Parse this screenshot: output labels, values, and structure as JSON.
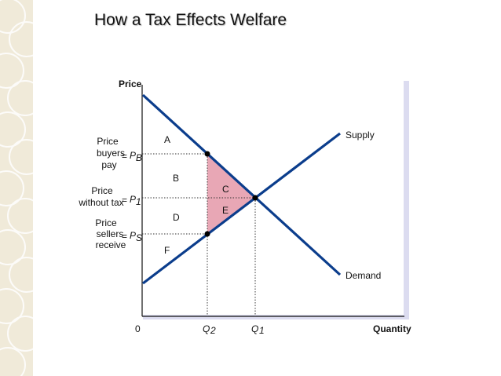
{
  "slide": {
    "title": "How a Tax Effects Welfare"
  },
  "diagram": {
    "axes": {
      "y_label": "Price",
      "x_label": "Quantity",
      "origin": "0"
    },
    "curves": {
      "supply": "Supply",
      "demand": "Demand"
    },
    "price_levels": {
      "buyers": {
        "line1": "Price",
        "line2": "buyers",
        "line3": "pay",
        "symbol": "P",
        "subscript": "B"
      },
      "no_tax": {
        "line1": "Price",
        "line2": "without tax",
        "symbol": "P",
        "subscript": "1"
      },
      "sellers": {
        "line1": "Price",
        "line2": "sellers",
        "line3": "receive",
        "symbol": "P",
        "subscript": "S"
      },
      "equals": "="
    },
    "quantities": {
      "q2": {
        "symbol": "Q",
        "subscript": "2"
      },
      "q1": {
        "symbol": "Q",
        "subscript": "1"
      }
    },
    "areas": {
      "a": "A",
      "b": "B",
      "c": "C",
      "d": "D",
      "e": "E",
      "f": "F"
    },
    "colors": {
      "curve": "#0b3d8c",
      "deadweight_fill": "#e8a7b5",
      "panel_shadow": "#dcdcf0"
    }
  }
}
